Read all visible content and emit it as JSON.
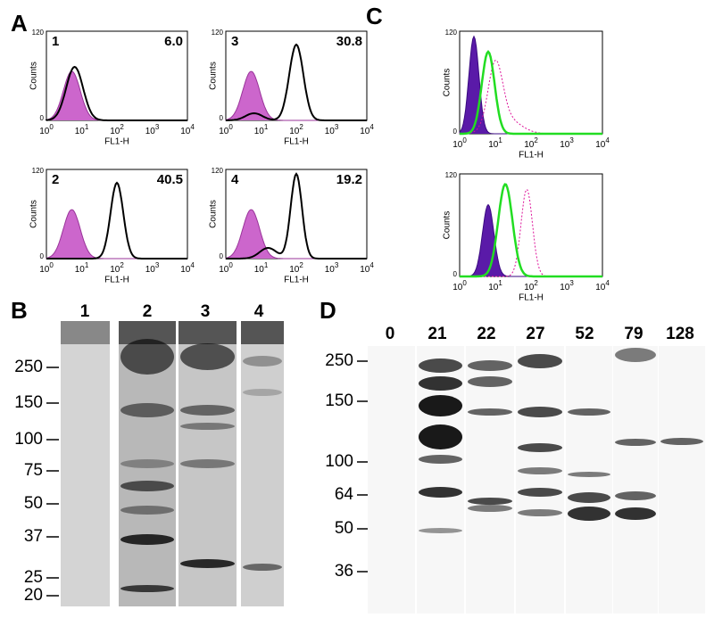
{
  "panels": {
    "a": {
      "label": "A",
      "plots": [
        {
          "sample": "1",
          "percent": "6.0"
        },
        {
          "sample": "3",
          "percent": "30.8"
        },
        {
          "sample": "2",
          "percent": "40.5"
        },
        {
          "sample": "4",
          "percent": "19.2"
        }
      ],
      "y_axis": {
        "title": "Counts",
        "ticks": [
          "0",
          "120"
        ]
      },
      "x_axis": {
        "title": "FL1-H",
        "tick_base": "10",
        "tick_exponents": [
          "0",
          "1",
          "2",
          "3",
          "4"
        ]
      }
    },
    "b": {
      "label": "B",
      "lanes": [
        "1",
        "2",
        "3",
        "4"
      ],
      "markers": [
        "250",
        "150",
        "100",
        "75",
        "50",
        "37",
        "25",
        "20"
      ]
    },
    "c": {
      "label": "C",
      "y_axis": {
        "title": "Counts",
        "ticks": [
          "0",
          "120"
        ]
      },
      "x_axis": {
        "title": "FL1-H",
        "tick_base": "10",
        "tick_exponents": [
          "0",
          "1",
          "2",
          "3",
          "4"
        ]
      }
    },
    "d": {
      "label": "D",
      "lanes": [
        "0",
        "21",
        "22",
        "27",
        "52",
        "79",
        "128"
      ],
      "markers": [
        "250",
        "150",
        "100",
        "64",
        "50",
        "36"
      ]
    }
  }
}
